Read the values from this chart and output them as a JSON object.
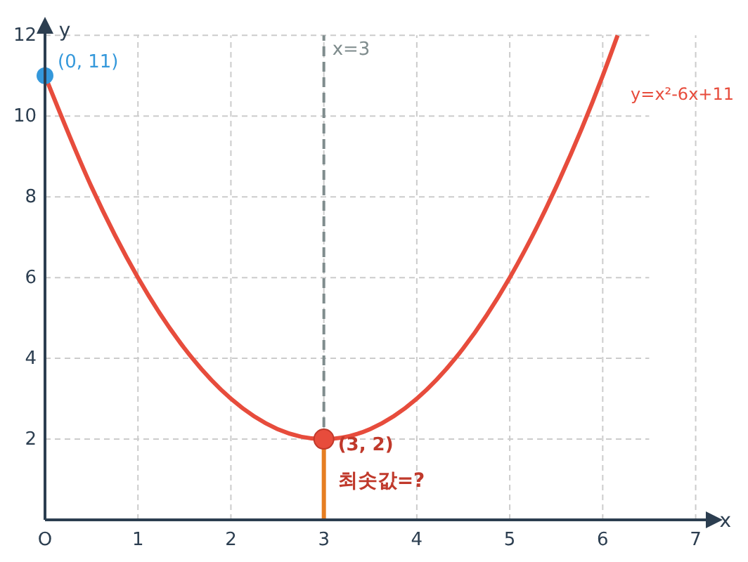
{
  "chart_data": {
    "type": "line",
    "xlabel": "x",
    "ylabel": "y",
    "xlim": [
      0,
      7.2
    ],
    "ylim": [
      0,
      12.25
    ],
    "xticks": [
      {
        "value": 0,
        "label": "O"
      },
      1,
      2,
      3,
      4,
      5,
      6,
      7
    ],
    "yticks": [
      2,
      4,
      6,
      8,
      10,
      12
    ],
    "grid": true,
    "series": [
      {
        "name": "y=x²-6x+11",
        "color": "#e74c3c",
        "x": [
          0,
          0.5,
          1,
          1.5,
          2,
          2.5,
          3,
          3.5,
          4,
          4.5,
          5,
          5.5,
          6,
          6.16
        ],
        "values": [
          11,
          8.25,
          6,
          4.25,
          3,
          2.25,
          2,
          2.25,
          3,
          4.25,
          6,
          8.25,
          11,
          12
        ],
        "marker": "none",
        "line_style": "solid"
      },
      {
        "type": "line",
        "color": "#e67e22",
        "x": [
          3,
          3
        ],
        "values": [
          0,
          2
        ],
        "marker": "none",
        "line_style": "solid"
      },
      {
        "type": "scatter",
        "color": "#3498db",
        "x": [
          0
        ],
        "values": [
          11
        ],
        "marker": "circle",
        "value_labels": [
          "(0, 11)"
        ]
      },
      {
        "type": "scatter",
        "color": "#e74c3c",
        "x": [
          3
        ],
        "values": [
          2
        ],
        "marker": "circle",
        "value_labels": [
          "(3, 2)"
        ]
      }
    ],
    "ref_lines": [
      {
        "axis": "x",
        "value": 3,
        "label": "x=3",
        "color": "#7f8c8d",
        "line_style": "dashed"
      }
    ],
    "annotations": [
      {
        "text": "최솟값=?",
        "x": 3,
        "y": 1
      }
    ]
  }
}
